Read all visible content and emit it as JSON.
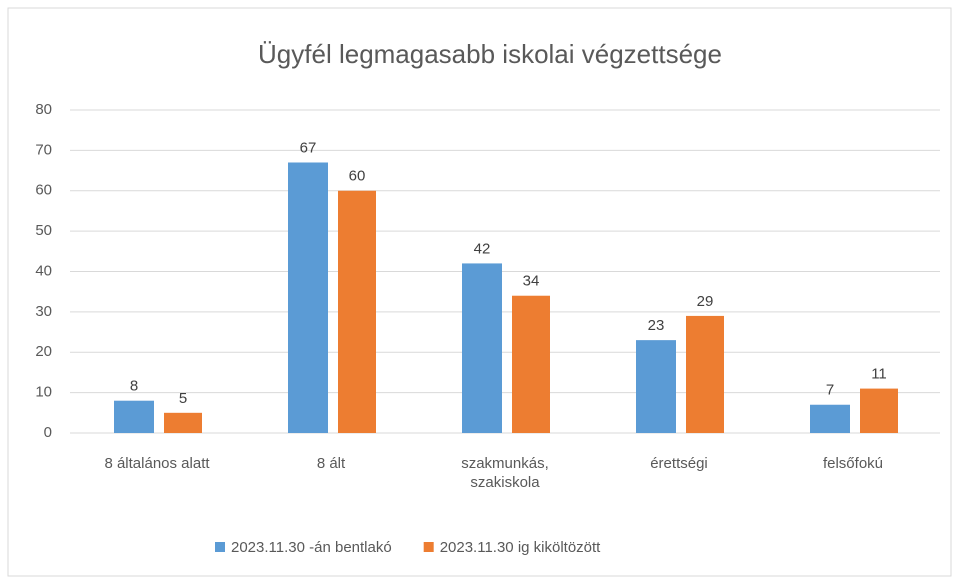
{
  "chart_data": {
    "type": "bar",
    "title": "Ügyfél legmagasabb iskolai végzettsége",
    "categories": [
      "8 általános alatt",
      "8 ált",
      "szakmunkás, szakiskola",
      "érettségi",
      "felsőfokú"
    ],
    "series": [
      {
        "name": "2023.11.30 -án bentlakó",
        "color": "#5b9bd5",
        "values": [
          8,
          67,
          42,
          23,
          7
        ]
      },
      {
        "name": "2023.11.30 ig kiköltözött",
        "color": "#ed7d31",
        "values": [
          5,
          60,
          34,
          29,
          11
        ]
      }
    ],
    "ylim": [
      0,
      80
    ],
    "yticks": [
      0,
      10,
      20,
      30,
      40,
      50,
      60,
      70,
      80
    ],
    "grid": true,
    "legend": "bottom"
  }
}
